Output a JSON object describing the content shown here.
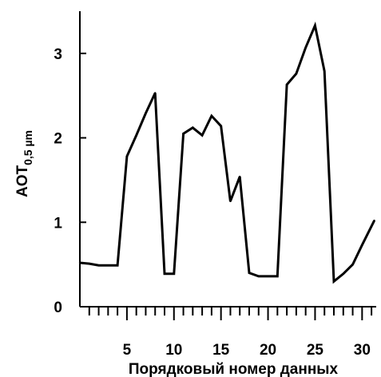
{
  "chart_data": {
    "type": "line",
    "title": "",
    "xlabel": "Порядковый номер данных",
    "ylabel": {
      "main": "AOT",
      "sub": "0,5 µm"
    },
    "xlim": [
      0,
      31.5
    ],
    "ylim": [
      0,
      3.5
    ],
    "x_tick_labels": [
      "5",
      "10",
      "15",
      "20",
      "25",
      "30"
    ],
    "x_tick_values": [
      5,
      10,
      15,
      20,
      25,
      30
    ],
    "x_minor_ticks": [
      1,
      2,
      3,
      4,
      5,
      6,
      7,
      8,
      9,
      10,
      11,
      12,
      13,
      14,
      15,
      16,
      17,
      18,
      19,
      20,
      21,
      22,
      23,
      24,
      25,
      26,
      27,
      28,
      29,
      30,
      31
    ],
    "y_tick_labels": [
      "0",
      "1",
      "2",
      "3"
    ],
    "y_tick_values": [
      0,
      1,
      2,
      3
    ],
    "grid": false,
    "series": [
      {
        "color": "#000000",
        "x": [
          0,
          1,
          2,
          3,
          4,
          5,
          6,
          7,
          8,
          9,
          10,
          11,
          12,
          13,
          14,
          15,
          16,
          17,
          18,
          19,
          20,
          21,
          22,
          23,
          24,
          25,
          26,
          27,
          28,
          29,
          30,
          31.3
        ],
        "y": [
          0.52,
          0.51,
          0.49,
          0.49,
          0.49,
          1.78,
          2.03,
          2.29,
          2.53,
          0.39,
          0.39,
          2.05,
          2.12,
          2.03,
          2.26,
          2.14,
          1.25,
          1.54,
          0.4,
          0.36,
          0.36,
          0.36,
          2.63,
          2.76,
          3.07,
          3.33,
          2.79,
          0.3,
          0.39,
          0.5,
          0.73,
          1.02
        ]
      }
    ]
  }
}
